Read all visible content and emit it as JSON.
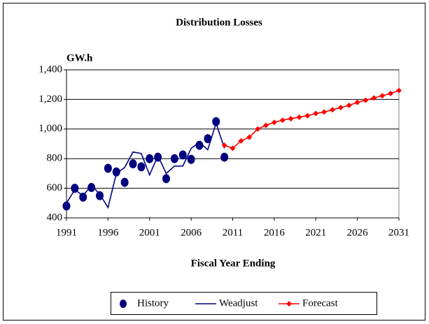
{
  "chart_data": {
    "type": "line",
    "title": "Distribution Losses",
    "y_label": "GW.h",
    "x_label": "Fiscal Year Ending",
    "xlim": [
      1991,
      2031
    ],
    "xticks": [
      1991,
      1996,
      2001,
      2006,
      2011,
      2016,
      2021,
      2026,
      2031
    ],
    "ylim": [
      400,
      1400
    ],
    "yticks": [
      400,
      600,
      800,
      {
        "value": 1000,
        "label": "1,000"
      },
      {
        "value": 1200,
        "label": "1,200"
      },
      {
        "value": 1400,
        "label": "1,400"
      }
    ],
    "grid": true,
    "legend": "bottom",
    "series": [
      {
        "name": "History",
        "type": "scatter",
        "color": "#00007f",
        "x": [
          1991,
          1992,
          1993,
          1994,
          1995,
          1996,
          1997,
          1998,
          1999,
          2000,
          2001,
          2002,
          2003,
          2004,
          2005,
          2006,
          2007,
          2008,
          2009,
          2010
        ],
        "values": [
          480,
          600,
          540,
          605,
          550,
          735,
          710,
          640,
          765,
          745,
          800,
          810,
          665,
          800,
          825,
          795,
          890,
          935,
          1050,
          810
        ]
      },
      {
        "name": "Weadjust",
        "type": "line",
        "color": "#00007f",
        "x": [
          1991,
          1992,
          1993,
          1994,
          1995,
          1996,
          1997,
          1998,
          1999,
          2000,
          2001,
          2002,
          2003,
          2004,
          2005,
          2006,
          2007,
          2008,
          2009,
          2010
        ],
        "values": [
          500,
          590,
          550,
          620,
          560,
          470,
          700,
          740,
          845,
          835,
          690,
          820,
          700,
          750,
          750,
          870,
          910,
          860,
          1040,
          870
        ]
      },
      {
        "name": "Forecast",
        "type": "line",
        "marker": "diamond",
        "color": "#ff0000",
        "x": [
          2010,
          2011,
          2012,
          2013,
          2014,
          2015,
          2016,
          2017,
          2018,
          2019,
          2020,
          2021,
          2022,
          2023,
          2024,
          2025,
          2026,
          2027,
          2028,
          2029,
          2030,
          2031
        ],
        "values": [
          890,
          870,
          920,
          945,
          1000,
          1025,
          1045,
          1060,
          1070,
          1080,
          1090,
          1105,
          1115,
          1130,
          1145,
          1160,
          1180,
          1195,
          1210,
          1225,
          1240,
          1260
        ]
      }
    ]
  }
}
